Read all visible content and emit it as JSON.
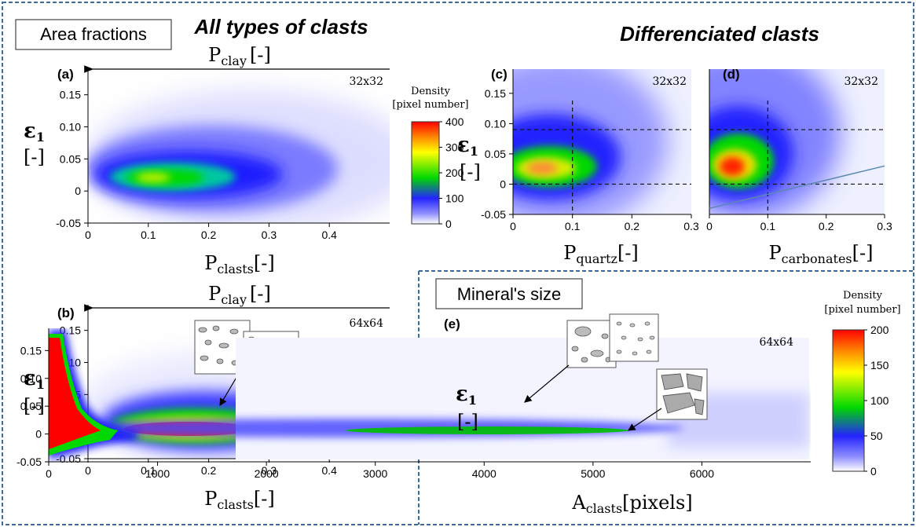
{
  "header": {
    "all_types_title": "All types of clasts",
    "differenciated_title": "Differenciated clasts",
    "area_fractions_label": "Area fractions",
    "mineral_size_label": "Mineral's size"
  },
  "colorbars": [
    {
      "title_line1": "Density",
      "title_line2": "[pixel number]",
      "ticks": [
        "400",
        "300",
        "200",
        "100",
        "0"
      ]
    },
    {
      "title_line1": "Density",
      "title_line2": "[pixel number]",
      "ticks": [
        "200",
        "150",
        "100",
        "50",
        "0"
      ]
    }
  ],
  "colors": {
    "frame": "#3a6aa0",
    "cmap": [
      "#ffffff",
      "#2323ff",
      "#00d800",
      "#ffff00",
      "#ff0000"
    ]
  },
  "chart_data": [
    {
      "panel": "(a)",
      "type": "heatmap",
      "resolution": "32x32",
      "xlabel_main": "P",
      "xlabel_sub": "clasts",
      "xlabel_unit": "[-]",
      "top_label_main": "P",
      "top_label_sub": "clay",
      "top_label_unit": "[-]",
      "ylabel_main": "ε",
      "ylabel_sub": "1",
      "ylabel_unit": "[-]",
      "xlim": [
        0,
        0.5
      ],
      "ylim": [
        -0.05,
        0.19
      ],
      "xticks": [
        "0",
        "0.1",
        "0.2",
        "0.3",
        "0.4"
      ],
      "yticks": [
        "-0.05",
        "0",
        "0.05",
        "0.10",
        "0.15"
      ],
      "peak": {
        "x": 0.17,
        "y": 0.01,
        "density": 250
      }
    },
    {
      "panel": "(b)",
      "type": "heatmap",
      "resolution": "64x64",
      "xlabel_main": "P",
      "xlabel_sub": "clasts",
      "xlabel_unit": "[-]",
      "top_label_main": "P",
      "top_label_sub": "clay",
      "top_label_unit": "[-]",
      "ylabel_main": "ε",
      "ylabel_sub": "1",
      "ylabel_unit": "[-]",
      "xlim": [
        0,
        0.5
      ],
      "ylim": [
        -0.05,
        0.19
      ],
      "xticks": [
        "0",
        "0.1",
        "0.2",
        "0.3",
        "0.4"
      ],
      "yticks": [
        "-0.05",
        "0",
        "0.05",
        "0.10",
        "0.15"
      ],
      "peak": {
        "x": 0.19,
        "y": 0.0,
        "density": 400
      }
    },
    {
      "panel": "(c)",
      "type": "heatmap",
      "resolution": "32x32",
      "xlabel_main": "P",
      "xlabel_sub": "quartz",
      "xlabel_unit": "[-]",
      "ylabel_main": "ε",
      "ylabel_sub": "1",
      "ylabel_unit": "[-]",
      "xlim": [
        0,
        0.3
      ],
      "ylim": [
        -0.05,
        0.19
      ],
      "xticks": [
        "0",
        "0.1",
        "0.2",
        "0.3"
      ],
      "yticks": [
        "-0.05",
        "0",
        "0.05",
        "0.10",
        "0.15"
      ],
      "reference_lines": {
        "x": 0.1,
        "y": [
          0.0,
          0.09
        ]
      },
      "peak": {
        "x": 0.05,
        "y": 0.01,
        "density": 300
      }
    },
    {
      "panel": "(d)",
      "type": "heatmap",
      "resolution": "32x32",
      "xlabel_main": "P",
      "xlabel_sub": "carbonates",
      "xlabel_unit": "[-]",
      "xlim": [
        0,
        0.3
      ],
      "ylim": [
        -0.05,
        0.19
      ],
      "xticks": [
        "0",
        "0.1",
        "0.2",
        "0.3"
      ],
      "reference_lines": {
        "x": 0.1,
        "y": [
          0.0,
          0.09
        ]
      },
      "trend_line": {
        "x": [
          0.0,
          0.3
        ],
        "y": [
          -0.04,
          0.03
        ]
      },
      "peak": {
        "x": 0.04,
        "y": 0.02,
        "density": 400
      }
    },
    {
      "panel": "(e)",
      "type": "heatmap",
      "resolution": "64x64",
      "xlabel_main": "A",
      "xlabel_sub": "clasts",
      "xlabel_unit": "[pixels]",
      "ylabel_main": "ε",
      "ylabel_sub": "1",
      "ylabel_unit": "[-]",
      "xlim": [
        0,
        7000
      ],
      "ylim": [
        -0.05,
        0.19
      ],
      "xticks": [
        "0",
        "1000",
        "2000",
        "3000",
        "4000",
        "5000",
        "6000"
      ],
      "yticks": [
        "-0.05",
        "0",
        "0.05",
        "0.10",
        "0.15"
      ],
      "peak": {
        "x": 200,
        "y": 0.05,
        "density": 200
      }
    }
  ]
}
